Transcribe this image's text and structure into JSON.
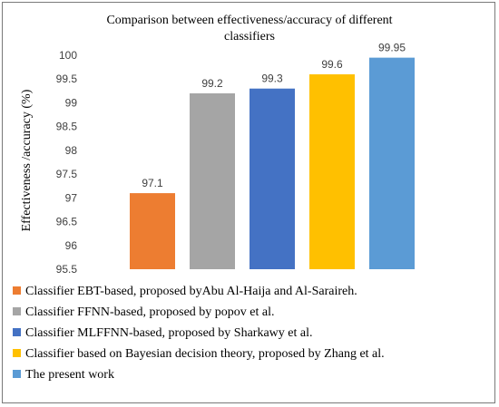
{
  "chart_data": {
    "type": "bar",
    "title": "Comparison between effectiveness/accuracy  of different classifiers",
    "title_lines": [
      "Comparison between effectiveness/accuracy  of different",
      "classifiers"
    ],
    "xlabel": "",
    "ylabel": "Effectiveness /accuracy (%)",
    "ylim": [
      95.5,
      100
    ],
    "yticks": [
      "95.5",
      "96",
      "96.5",
      "97",
      "97.5",
      "98",
      "98.5",
      "99",
      "99.5",
      "100"
    ],
    "grid": false,
    "legend_position": "bottom",
    "series": [
      {
        "name": "Classifier EBT-based, proposed byAbu Al-Haija and Al-Saraireh.",
        "value": 97.1,
        "label": "97.1",
        "color": "#ED7D31"
      },
      {
        "name": "Classifier FFNN-based, proposed by popov et al.",
        "value": 99.2,
        "label": "99.2",
        "color": "#A5A5A5"
      },
      {
        "name": "Classifier MLFFNN-based, proposed by Sharkawy et al.",
        "value": 99.3,
        "label": "99.3",
        "color": "#4472C4"
      },
      {
        "name": "Classifier based on Bayesian decision theory, proposed by Zhang et al.",
        "value": 99.6,
        "label": "99.6",
        "color": "#FFC000"
      },
      {
        "name": "The present work",
        "value": 99.95,
        "label": "99.95",
        "color": "#5B9BD5"
      }
    ]
  }
}
